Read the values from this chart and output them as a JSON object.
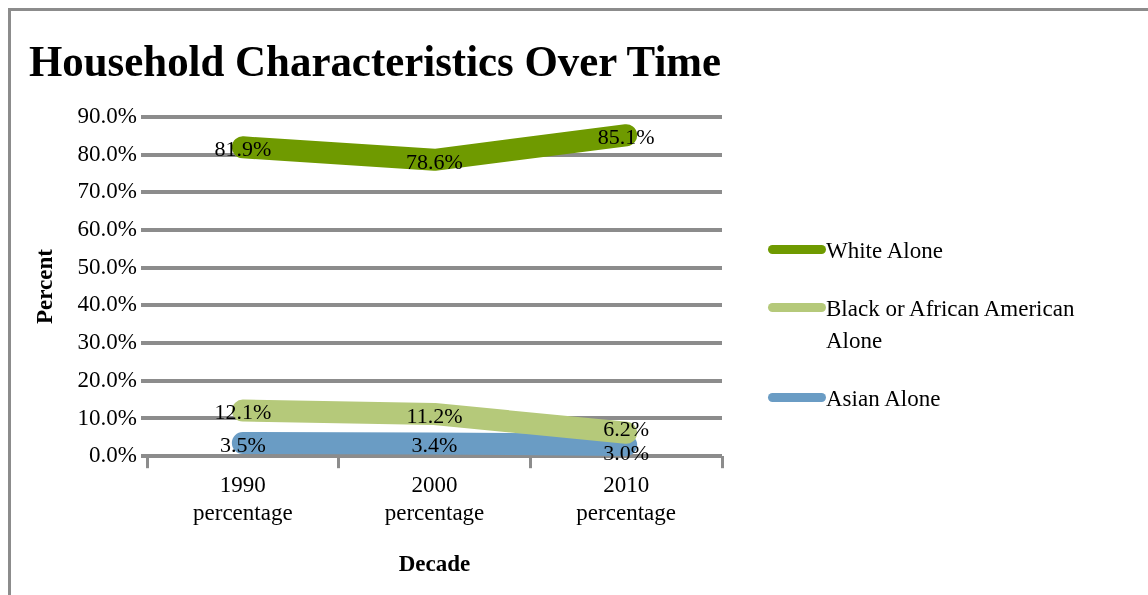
{
  "chart_data": {
    "type": "line",
    "title": "Household Characteristics Over Time",
    "xlabel": "Decade",
    "ylabel": "Percent",
    "categories": [
      "1990 percentage",
      "2000 percentage",
      "2010 percentage"
    ],
    "series": [
      {
        "name": "White Alone",
        "color": "#6f9a00",
        "values": [
          81.9,
          78.6,
          85.1
        ],
        "value_labels": [
          "81.9%",
          "78.6%",
          "85.1%"
        ]
      },
      {
        "name": "Black or African American Alone",
        "color": "#b5c97a",
        "values": [
          12.1,
          11.2,
          6.2
        ],
        "value_labels": [
          "12.1%",
          "11.2%",
          "6.2%"
        ]
      },
      {
        "name": "Asian Alone",
        "color": "#6a9cc4",
        "values": [
          3.5,
          3.4,
          3.0
        ],
        "value_labels": [
          "3.5%",
          "3.4%",
          "3.0%"
        ]
      }
    ],
    "ylim": [
      0,
      90
    ],
    "yticks": [
      {
        "value": 0,
        "label": "0.0%"
      },
      {
        "value": 10,
        "label": "10.0%"
      },
      {
        "value": 20,
        "label": "20.0%"
      },
      {
        "value": 30,
        "label": "30.0%"
      },
      {
        "value": 40,
        "label": "40.0%"
      },
      {
        "value": 50,
        "label": "50.0%"
      },
      {
        "value": 60,
        "label": "60.0%"
      },
      {
        "value": 70,
        "label": "70.0%"
      },
      {
        "value": 80,
        "label": "80.0%"
      },
      {
        "value": 90,
        "label": "90.0%"
      }
    ],
    "grid": "y",
    "legend": "right",
    "marker": "none",
    "line_style": "solid"
  }
}
